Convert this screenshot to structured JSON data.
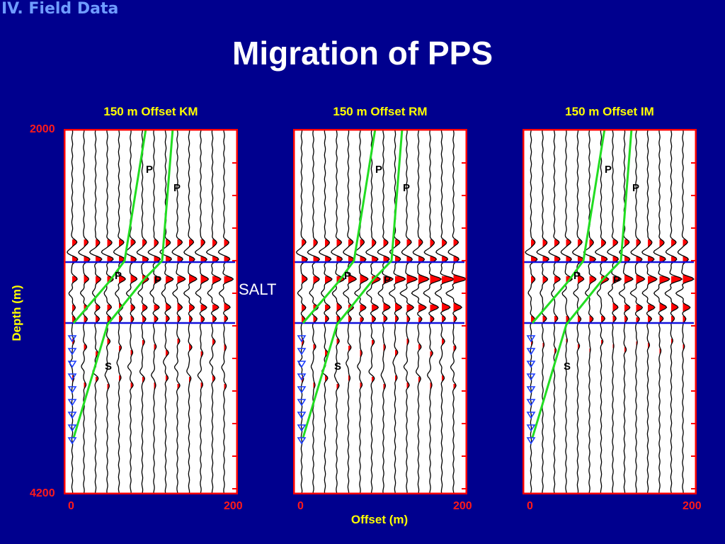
{
  "section_header": "IV. Field Data",
  "title": "Migration of PPS",
  "y_axis_label": "Depth (m)",
  "x_axis_label": "Offset (m)",
  "salt_label": "SALT",
  "y_ticks": {
    "top": "2000",
    "bottom": "4200"
  },
  "x_ticks": {
    "left": "0",
    "right": "200"
  },
  "wave_labels": {
    "p": "P",
    "s": "S"
  },
  "panels": [
    {
      "title": "150 m Offset KM"
    },
    {
      "title": "150 m Offset RM"
    },
    {
      "title": "150 m Offset IM"
    }
  ],
  "colors": {
    "background": "#00008e",
    "frame": "#ff0000",
    "fill": "#ff0000",
    "ray": "#22dd22",
    "horizon": "#1010dd",
    "receiver": "#1a3cff",
    "title_yellow": "#ffff00",
    "section_blue": "#6f9cff"
  }
}
